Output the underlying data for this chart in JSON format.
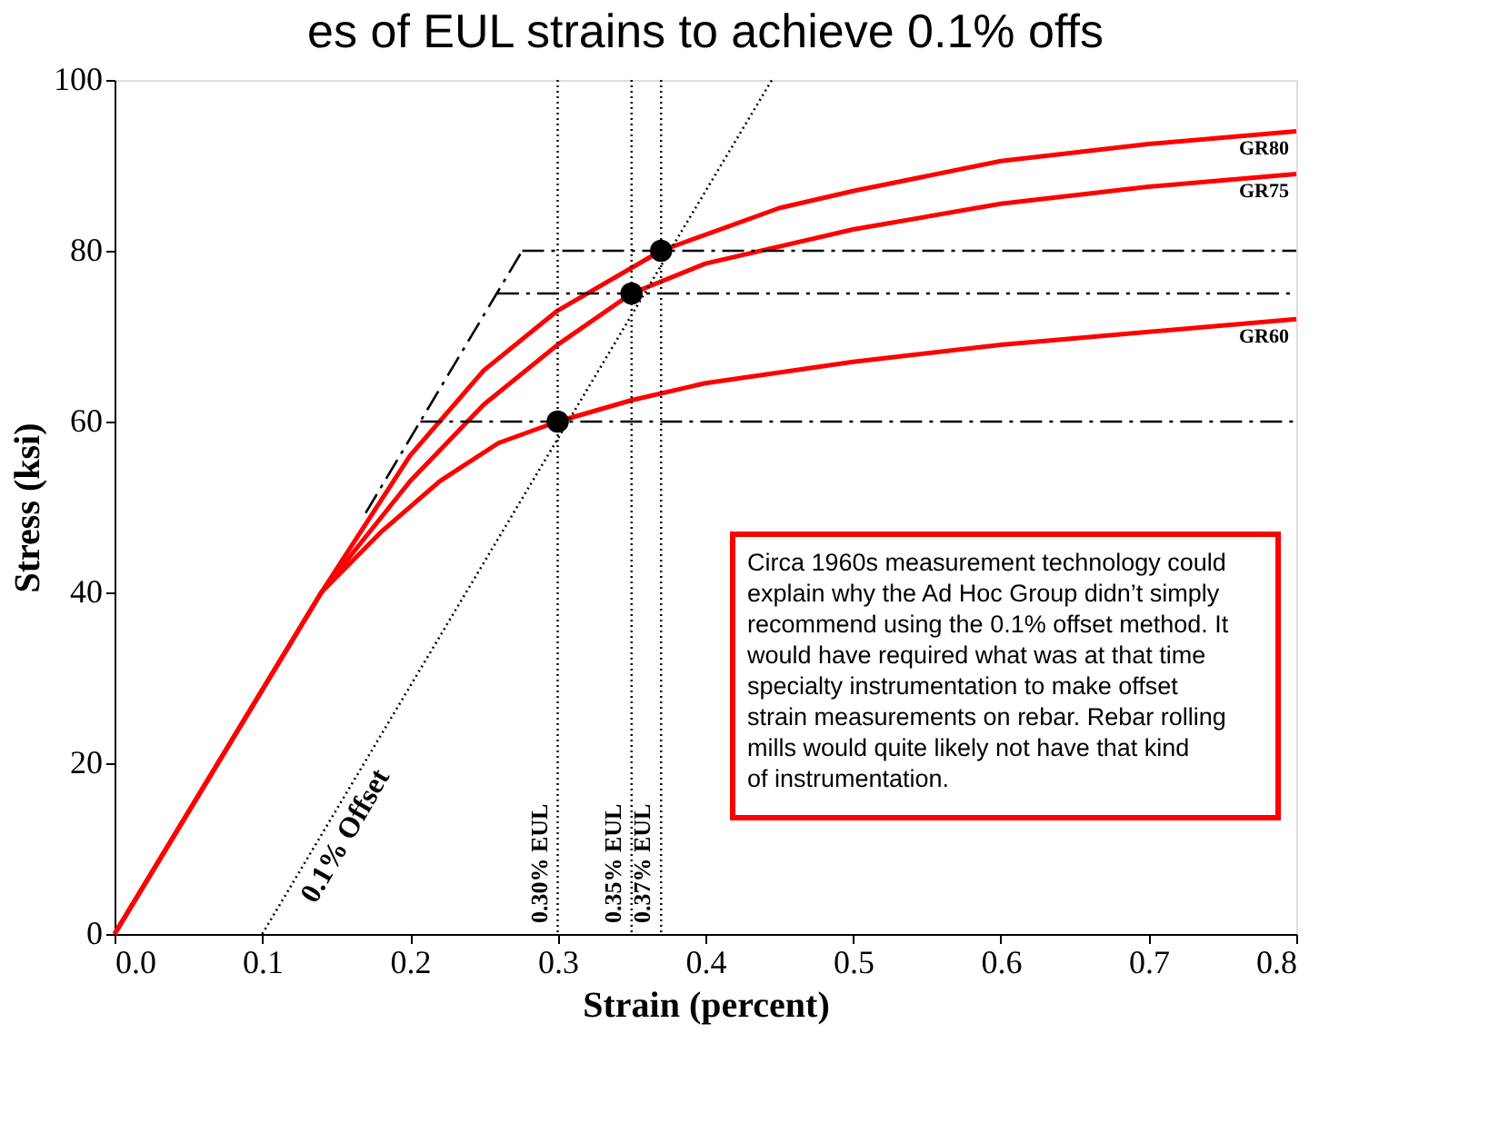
{
  "chart_data": {
    "type": "line",
    "title": "es of EUL strains to achieve 0.1% offs",
    "xlabel": "Strain (percent)",
    "ylabel": "Stress (ksi)",
    "xlim": [
      0,
      0.8
    ],
    "ylim": [
      0,
      100
    ],
    "xticks": [
      {
        "value": 0,
        "label": "0.0"
      },
      0.1,
      0.2,
      0.3,
      0.4,
      0.5,
      0.6,
      0.7,
      0.8
    ],
    "yticks": [
      0,
      20,
      40,
      60,
      80,
      100
    ],
    "grid": false,
    "series": [
      {
        "name": "GR80",
        "color": "#ff0000",
        "line_style": "solid",
        "x": [
          0,
          0.14,
          0.17,
          0.2,
          0.25,
          0.3,
          0.37,
          0.45,
          0.5,
          0.6,
          0.7,
          0.8
        ],
        "values": [
          0,
          40,
          48,
          56,
          66,
          73,
          80,
          85,
          87,
          90.5,
          92.5,
          94
        ]
      },
      {
        "name": "GR75",
        "color": "#ff0000",
        "line_style": "solid",
        "x": [
          0,
          0.14,
          0.2,
          0.25,
          0.3,
          0.35,
          0.4,
          0.5,
          0.6,
          0.7,
          0.8
        ],
        "values": [
          0,
          40,
          53,
          62,
          69,
          75,
          78.5,
          82.5,
          85.5,
          87.5,
          89
        ]
      },
      {
        "name": "GR60",
        "color": "#ff0000",
        "line_style": "solid",
        "x": [
          0,
          0.14,
          0.18,
          0.22,
          0.26,
          0.3,
          0.35,
          0.4,
          0.5,
          0.6,
          0.7,
          0.8
        ],
        "values": [
          0,
          40,
          47,
          53,
          57.5,
          60,
          62.5,
          64.5,
          67,
          69,
          70.5,
          72
        ]
      },
      {
        "color": "#000000",
        "line_style": "dotted",
        "x": [
          0.1,
          0.445
        ],
        "values": [
          0,
          100
        ]
      },
      {
        "color": "#000000",
        "line_style": "dashed",
        "x": [
          0.17,
          0.276
        ],
        "values": [
          49.3,
          80
        ]
      },
      {
        "color": "#000000",
        "line_style": "dashed",
        "x": [
          0.276,
          0.8
        ],
        "values": [
          80,
          80
        ]
      },
      {
        "color": "#000000",
        "line_style": "dashed",
        "x": [
          0.259,
          0.8
        ],
        "values": [
          75,
          75
        ]
      },
      {
        "color": "#000000",
        "line_style": "dashed",
        "x": [
          0.207,
          0.8
        ],
        "values": [
          60,
          60
        ]
      },
      {
        "type": "scatter",
        "marker": "circle",
        "color": "#000000",
        "x": [
          0.3,
          0.35,
          0.37
        ],
        "values": [
          60,
          75,
          80
        ]
      }
    ],
    "ref_lines": [
      {
        "axis": "x",
        "value": 0.3,
        "label": "0.30% EUL",
        "line_style": "dotted",
        "color": "#000000"
      },
      {
        "axis": "x",
        "value": 0.35,
        "label": "0.35% EUL",
        "line_style": "dotted",
        "color": "#000000"
      },
      {
        "axis": "x",
        "value": 0.37,
        "label": "0.37% EUL",
        "line_style": "dotted",
        "color": "#000000"
      }
    ],
    "annotations": [
      "0.1% Offset",
      "Circa 1960s measurement technology could explain why the Ad Hoc Group didn’t simply recommend using the 0.1% offset method.  It would have required what was at that time specialty instrumentation to make offset strain measurements on rebar. Rebar rolling mills would quite likely not have that kind of instrumentation."
    ]
  }
}
